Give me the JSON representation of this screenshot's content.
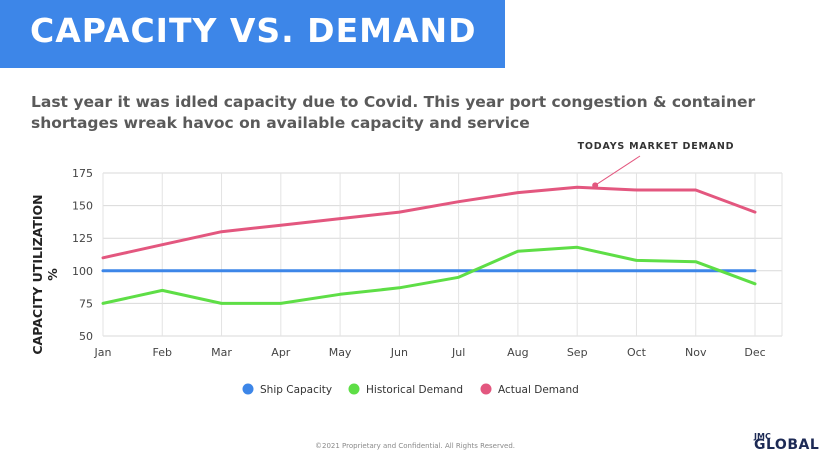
{
  "header": {
    "title": "CAPACITY VS. DEMAND",
    "subtitle": "Last year it was idled capacity due to Covid. This year port congestion & container shortages wreak havoc on available capacity and service"
  },
  "colors": {
    "banner": "#3d86e8",
    "ship_capacity": "#3d86e8",
    "historical_demand": "#5ede46",
    "actual_demand": "#e3577f"
  },
  "chart_data": {
    "type": "line",
    "categories": [
      "Jan",
      "Feb",
      "Mar",
      "Apr",
      "May",
      "Jun",
      "Jul",
      "Aug",
      "Sep",
      "Oct",
      "Nov",
      "Dec"
    ],
    "series": [
      {
        "name": "Ship Capacity",
        "color": "#3d86e8",
        "values": [
          100,
          100,
          100,
          100,
          100,
          100,
          100,
          100,
          100,
          100,
          100,
          100
        ]
      },
      {
        "name": "Historical Demand",
        "color": "#5ede46",
        "values": [
          75,
          85,
          75,
          75,
          82,
          87,
          95,
          115,
          118,
          108,
          107,
          90
        ]
      },
      {
        "name": "Actual Demand",
        "color": "#e3577f",
        "values": [
          110,
          120,
          130,
          135,
          140,
          145,
          153,
          160,
          164,
          162,
          162,
          145
        ]
      }
    ],
    "yticks": [
      50,
      75,
      100,
      125,
      150,
      175
    ],
    "ylim": [
      50,
      175
    ],
    "ylabel": "CAPACITY UTILIZATION %",
    "xlabel": "",
    "grid": true,
    "legend_position": "bottom",
    "annotation": {
      "text": "TODAYS MARKET DEMAND",
      "series": "Actual Demand",
      "category": "Sep"
    }
  },
  "footer": {
    "copyright": "©2021 Proprietary and Confidential. All Rights Reserved.",
    "logo_top": "JMC",
    "logo_main": "GLOBAL"
  }
}
